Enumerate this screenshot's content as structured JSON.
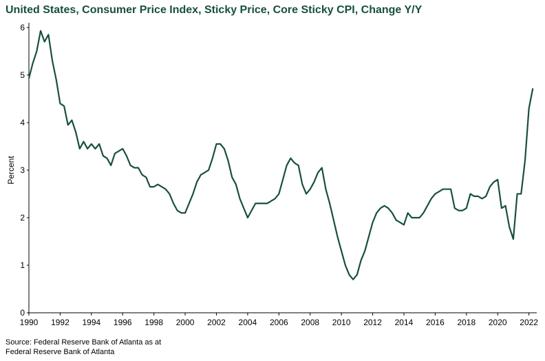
{
  "chart_data": {
    "type": "line",
    "title": "United States, Consumer Price Index, Sticky Price, Core Sticky CPI, Change Y/Y",
    "ylabel": "Percent",
    "source": [
      "Source: Federal Reserve Bank of Atlanta as at",
      "Federal Reserve Bank of Atlanta"
    ],
    "xlim": [
      1990,
      2022.5
    ],
    "xticks": [
      1990,
      1992,
      1994,
      1996,
      1998,
      2000,
      2002,
      2004,
      2006,
      2008,
      2010,
      2012,
      2014,
      2016,
      2018,
      2020,
      2022
    ],
    "ylim": [
      0,
      6.1
    ],
    "yticks": [
      0,
      1,
      2,
      3,
      4,
      5,
      6
    ],
    "grid": false,
    "series": [
      {
        "color": "#17503a",
        "x": [
          1990,
          1990.25,
          1990.5,
          1990.75,
          1991,
          1991.25,
          1991.5,
          1991.75,
          1992,
          1992.25,
          1992.5,
          1992.75,
          1993,
          1993.25,
          1993.5,
          1993.75,
          1994,
          1994.25,
          1994.5,
          1994.75,
          1995,
          1995.25,
          1995.5,
          1995.75,
          1996,
          1996.25,
          1996.5,
          1996.75,
          1997,
          1997.25,
          1997.5,
          1997.75,
          1998,
          1998.25,
          1998.5,
          1998.75,
          1999,
          1999.25,
          1999.5,
          1999.75,
          2000,
          2000.25,
          2000.5,
          2000.75,
          2001,
          2001.25,
          2001.5,
          2001.75,
          2002,
          2002.25,
          2002.5,
          2002.75,
          2003,
          2003.25,
          2003.5,
          2003.75,
          2004,
          2004.25,
          2004.5,
          2004.75,
          2005,
          2005.25,
          2005.5,
          2005.75,
          2006,
          2006.25,
          2006.5,
          2006.75,
          2007,
          2007.25,
          2007.5,
          2007.75,
          2008,
          2008.25,
          2008.5,
          2008.75,
          2009,
          2009.25,
          2009.5,
          2009.75,
          2010,
          2010.25,
          2010.5,
          2010.75,
          2011,
          2011.25,
          2011.5,
          2011.75,
          2012,
          2012.25,
          2012.5,
          2012.75,
          2013,
          2013.25,
          2013.5,
          2013.75,
          2014,
          2014.25,
          2014.5,
          2014.75,
          2015,
          2015.25,
          2015.5,
          2015.75,
          2016,
          2016.25,
          2016.5,
          2016.75,
          2017,
          2017.25,
          2017.5,
          2017.75,
          2018,
          2018.25,
          2018.5,
          2018.75,
          2019,
          2019.25,
          2019.5,
          2019.75,
          2020,
          2020.25,
          2020.5,
          2020.75,
          2021,
          2021.25,
          2021.5,
          2021.75,
          2022,
          2022.25
        ],
        "values": [
          4.93,
          5.25,
          5.5,
          5.93,
          5.7,
          5.85,
          5.3,
          4.9,
          4.4,
          4.35,
          3.95,
          4.05,
          3.8,
          3.45,
          3.6,
          3.45,
          3.55,
          3.45,
          3.55,
          3.3,
          3.25,
          3.1,
          3.35,
          3.4,
          3.45,
          3.3,
          3.1,
          3.05,
          3.05,
          2.9,
          2.85,
          2.65,
          2.65,
          2.7,
          2.65,
          2.6,
          2.5,
          2.3,
          2.15,
          2.1,
          2.1,
          2.3,
          2.5,
          2.75,
          2.9,
          2.95,
          3.0,
          3.25,
          3.55,
          3.55,
          3.45,
          3.2,
          2.85,
          2.7,
          2.4,
          2.2,
          2.0,
          2.15,
          2.3,
          2.3,
          2.3,
          2.3,
          2.35,
          2.4,
          2.5,
          2.8,
          3.1,
          3.25,
          3.15,
          3.1,
          2.7,
          2.5,
          2.6,
          2.75,
          2.95,
          3.05,
          2.6,
          2.3,
          1.95,
          1.6,
          1.3,
          1.0,
          0.8,
          0.7,
          0.8,
          1.1,
          1.3,
          1.6,
          1.9,
          2.1,
          2.2,
          2.25,
          2.2,
          2.1,
          1.95,
          1.9,
          1.85,
          2.1,
          2.0,
          2.0,
          2.0,
          2.1,
          2.25,
          2.4,
          2.5,
          2.55,
          2.6,
          2.6,
          2.6,
          2.2,
          2.15,
          2.15,
          2.2,
          2.5,
          2.45,
          2.45,
          2.4,
          2.45,
          2.65,
          2.75,
          2.8,
          2.2,
          2.25,
          1.8,
          1.55,
          2.5,
          2.5,
          3.2,
          4.3,
          4.72
        ]
      }
    ]
  }
}
